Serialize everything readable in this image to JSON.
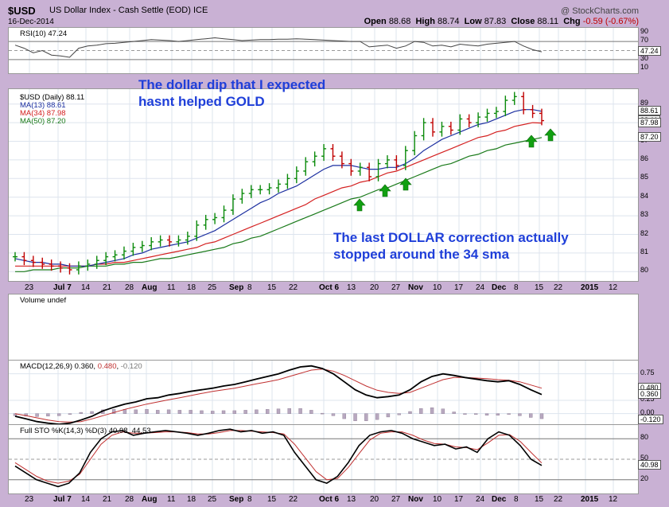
{
  "header": {
    "symbol": "$USD",
    "name": "US Dollar Index - Cash Settle (EOD)  ICE",
    "date": "16-Dec-2014",
    "source": "@ StockCharts.com",
    "open_label": "Open",
    "open": "88.68",
    "high_label": "High",
    "high": "88.74",
    "low_label": "Low",
    "low": "87.83",
    "close_label": "Close",
    "close": "88.11",
    "chg_label": "Chg",
    "chg": "-0.59 (-0.67%)"
  },
  "annotations": {
    "note1_line1": "The dollar dip that I expected",
    "note1_line2": "hasnt helped GOLD",
    "note2_line1": "The last DOLLAR correction actually",
    "note2_line2": "stopped around the 34 sma"
  },
  "legends": {
    "rsi": "RSI(10) 47.24",
    "price": "$USD (Daily) 88.11",
    "ma13": "MA(13) 88.61",
    "ma34": "MA(34) 87.98",
    "ma50": "MA(50) 87.20",
    "volume": "Volume undef",
    "macd_label": "MACD(12,26,9)",
    "macd_v1": "0.360",
    "macd_v2": "0.480",
    "macd_v3": "-0.120",
    "sto": "Full STO %K(14,3) %D(3) 40.98, 44.53"
  },
  "axes": {
    "rsi_ticks": [
      "90",
      "70",
      "50",
      "30",
      "10"
    ],
    "rsi_tags": [
      "47.24"
    ],
    "price_ticks": [
      "89",
      "88",
      "87",
      "86",
      "85",
      "84",
      "83",
      "82",
      "81",
      "80"
    ],
    "price_tags": [
      "88.61",
      "88.11",
      "87.98",
      "87.20"
    ],
    "macd_ticks": [
      "0.75",
      "0.25",
      "0.00"
    ],
    "macd_tags": [
      "0.480",
      "0.360",
      "-0.120"
    ],
    "sto_ticks": [
      "80",
      "50",
      "20"
    ],
    "sto_tags": [
      "40.98"
    ],
    "x_labels": [
      "23",
      "Jul 7",
      "14",
      "21",
      "28",
      "Aug",
      "11",
      "18",
      "25",
      "Sep",
      "8",
      "15",
      "22",
      "Oct 6",
      "13",
      "20",
      "27",
      "Nov",
      "10",
      "17",
      "24",
      "Dec",
      "8",
      "15",
      "22",
      "2015",
      "12"
    ]
  },
  "colors": {
    "price_up": "#0a8a0a",
    "price_down": "#c00000",
    "ma13": "#1c2fa0",
    "ma34": "#d42020",
    "ma50": "#1a7a1a",
    "macd": "#000000",
    "signal": "#c03030",
    "hist": "#b8a8c0",
    "rsi": "#444444",
    "arrow": "#12a012"
  },
  "chart_data": [
    {
      "type": "line",
      "title": "US Dollar Index - Cash Settle (EOD)",
      "series": [
        {
          "name": "$USD (Daily)",
          "values": [
            80.8,
            80.6,
            80.5,
            80.4,
            80.3,
            80.2,
            80.1,
            80.3,
            80.4,
            80.6,
            80.8,
            80.9,
            81.1,
            81.3,
            81.4,
            81.6,
            81.7,
            81.6,
            81.7,
            81.9,
            82.5,
            82.8,
            82.9,
            83.3,
            83.9,
            84.2,
            84.4,
            84.4,
            84.5,
            84.7,
            85.0,
            85.4,
            85.9,
            86.2,
            86.6,
            86.2,
            85.8,
            85.4,
            85.6,
            85.1,
            85.8,
            86.0,
            85.7,
            86.5,
            87.3,
            88.0,
            87.5,
            87.8,
            87.6,
            88.2,
            88.0,
            88.3,
            88.5,
            88.6,
            89.2,
            89.4,
            88.7,
            88.5,
            88.11
          ]
        },
        {
          "name": "MA(13)",
          "values": [
            80.7,
            80.6,
            80.5,
            80.5,
            80.4,
            80.4,
            80.3,
            80.3,
            80.3,
            80.4,
            80.5,
            80.6,
            80.7,
            80.9,
            81.0,
            81.2,
            81.3,
            81.4,
            81.5,
            81.6,
            81.8,
            82.0,
            82.2,
            82.5,
            82.8,
            83.1,
            83.4,
            83.7,
            83.9,
            84.2,
            84.4,
            84.6,
            84.9,
            85.2,
            85.5,
            85.7,
            85.7,
            85.7,
            85.6,
            85.5,
            85.5,
            85.6,
            85.6,
            85.8,
            86.1,
            86.5,
            86.8,
            87.1,
            87.3,
            87.5,
            87.7,
            87.9,
            88.0,
            88.2,
            88.4,
            88.6,
            88.7,
            88.7,
            88.61
          ]
        },
        {
          "name": "MA(34)",
          "values": [
            80.3,
            80.3,
            80.3,
            80.3,
            80.3,
            80.3,
            80.3,
            80.3,
            80.3,
            80.4,
            80.4,
            80.5,
            80.5,
            80.6,
            80.7,
            80.8,
            80.9,
            81.0,
            81.1,
            81.2,
            81.3,
            81.5,
            81.6,
            81.8,
            82.0,
            82.2,
            82.4,
            82.6,
            82.8,
            83.0,
            83.2,
            83.4,
            83.6,
            83.9,
            84.1,
            84.3,
            84.5,
            84.6,
            84.8,
            84.9,
            85.1,
            85.3,
            85.4,
            85.6,
            85.8,
            86.0,
            86.2,
            86.4,
            86.6,
            86.8,
            87.0,
            87.2,
            87.3,
            87.5,
            87.6,
            87.8,
            87.9,
            88.0,
            87.98
          ]
        },
        {
          "name": "MA(50)",
          "values": [
            80.0,
            80.0,
            80.1,
            80.1,
            80.1,
            80.2,
            80.2,
            80.2,
            80.3,
            80.3,
            80.3,
            80.4,
            80.4,
            80.5,
            80.5,
            80.6,
            80.7,
            80.7,
            80.8,
            80.9,
            81.0,
            81.1,
            81.2,
            81.3,
            81.5,
            81.6,
            81.8,
            81.9,
            82.1,
            82.3,
            82.5,
            82.7,
            82.9,
            83.1,
            83.3,
            83.5,
            83.7,
            83.9,
            84.0,
            84.2,
            84.4,
            84.5,
            84.7,
            84.9,
            85.1,
            85.3,
            85.5,
            85.7,
            85.8,
            86.0,
            86.2,
            86.3,
            86.5,
            86.6,
            86.8,
            86.9,
            87.0,
            87.1,
            87.2
          ]
        }
      ],
      "ylim": [
        79.5,
        89.8
      ]
    },
    {
      "type": "line",
      "title": "RSI(10)",
      "series": [
        {
          "name": "RSI(10)",
          "values": [
            62,
            55,
            45,
            50,
            40,
            38,
            35,
            55,
            60,
            62,
            65,
            66,
            68,
            70,
            72,
            74,
            73,
            72,
            70,
            72,
            74,
            76,
            78,
            76,
            74,
            72,
            73,
            74,
            74,
            75,
            75,
            76,
            75,
            74,
            73,
            72,
            71,
            70,
            70,
            58,
            60,
            62,
            55,
            60,
            70,
            68,
            60,
            62,
            58,
            64,
            62,
            60,
            64,
            66,
            68,
            70,
            60,
            52,
            47.24
          ]
        }
      ],
      "ylim": [
        0,
        100
      ]
    },
    {
      "type": "line",
      "title": "MACD(12,26,9)",
      "series": [
        {
          "name": "MACD",
          "values": [
            -0.05,
            -0.1,
            -0.15,
            -0.18,
            -0.2,
            -0.18,
            -0.12,
            -0.05,
            0.05,
            0.12,
            0.18,
            0.22,
            0.28,
            0.3,
            0.35,
            0.38,
            0.42,
            0.45,
            0.48,
            0.52,
            0.55,
            0.6,
            0.65,
            0.7,
            0.75,
            0.82,
            0.88,
            0.9,
            0.85,
            0.75,
            0.6,
            0.45,
            0.35,
            0.3,
            0.32,
            0.35,
            0.45,
            0.6,
            0.7,
            0.75,
            0.72,
            0.68,
            0.65,
            0.62,
            0.6,
            0.62,
            0.55,
            0.45,
            0.36
          ]
        },
        {
          "name": "Signal",
          "values": [
            0.0,
            -0.04,
            -0.08,
            -0.12,
            -0.15,
            -0.16,
            -0.15,
            -0.1,
            -0.04,
            0.02,
            0.08,
            0.13,
            0.18,
            0.22,
            0.26,
            0.3,
            0.34,
            0.38,
            0.42,
            0.45,
            0.48,
            0.52,
            0.56,
            0.6,
            0.64,
            0.7,
            0.76,
            0.82,
            0.84,
            0.8,
            0.72,
            0.62,
            0.52,
            0.44,
            0.4,
            0.38,
            0.4,
            0.48,
            0.56,
            0.64,
            0.68,
            0.68,
            0.67,
            0.66,
            0.64,
            0.63,
            0.6,
            0.54,
            0.48
          ]
        }
      ],
      "ylim": [
        -0.2,
        1.0
      ]
    },
    {
      "type": "line",
      "title": "Full STO %K(14,3) %D(3)",
      "series": [
        {
          "name": "%K",
          "values": [
            40,
            30,
            20,
            15,
            10,
            15,
            30,
            60,
            80,
            90,
            92,
            85,
            88,
            90,
            92,
            90,
            88,
            85,
            88,
            92,
            94,
            90,
            92,
            88,
            90,
            85,
            60,
            40,
            20,
            15,
            25,
            45,
            70,
            85,
            90,
            92,
            88,
            80,
            75,
            70,
            72,
            65,
            68,
            60,
            80,
            90,
            85,
            70,
            50,
            40.98
          ]
        },
        {
          "name": "%D",
          "values": [
            45,
            35,
            25,
            18,
            15,
            18,
            28,
            50,
            72,
            85,
            90,
            88,
            88,
            89,
            90,
            90,
            89,
            87,
            87,
            89,
            92,
            92,
            91,
            90,
            89,
            87,
            72,
            52,
            32,
            20,
            22,
            38,
            58,
            78,
            88,
            90,
            90,
            85,
            78,
            73,
            72,
            68,
            67,
            64,
            74,
            85,
            86,
            76,
            60,
            44.53
          ]
        }
      ],
      "ylim": [
        0,
        100
      ]
    }
  ]
}
